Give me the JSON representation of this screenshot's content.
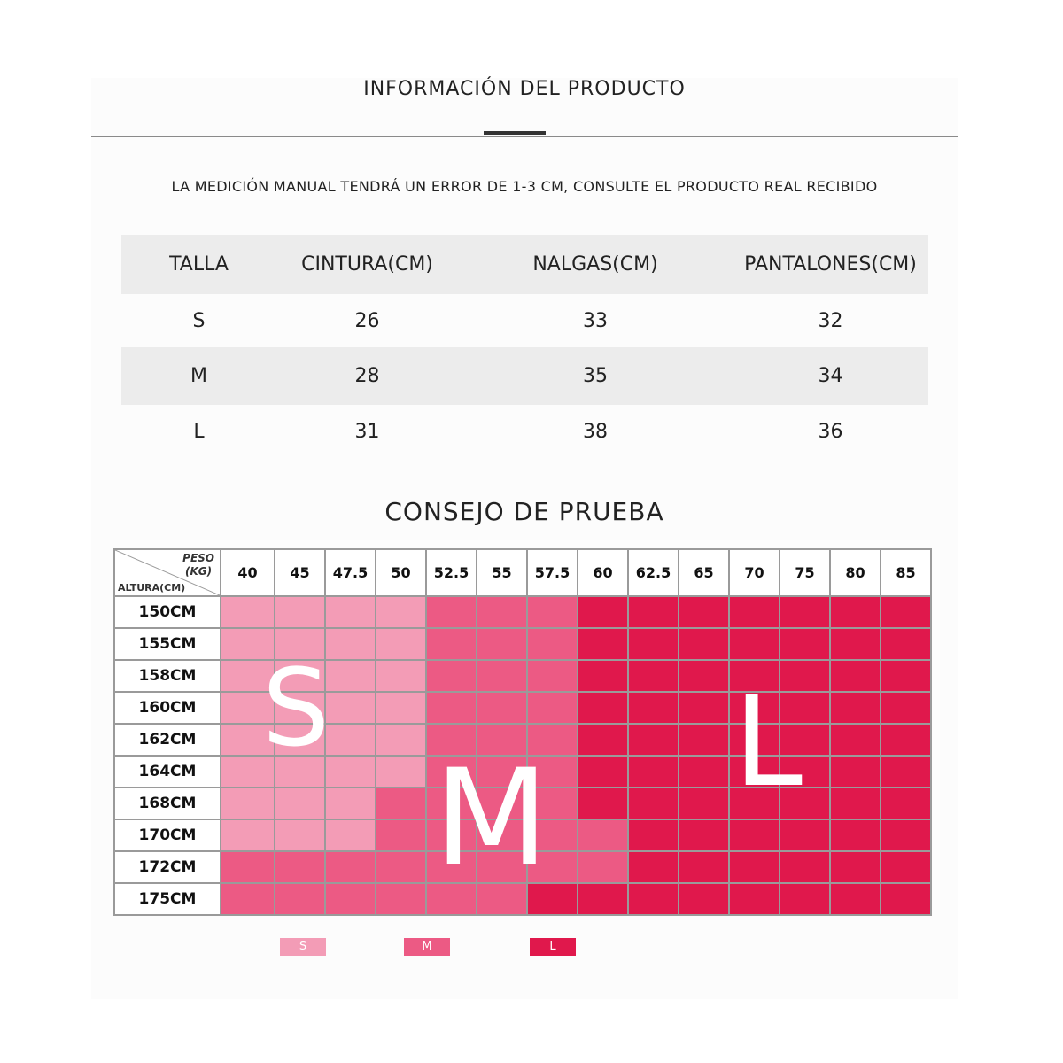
{
  "header": {
    "title": "INFORMACIÓN DEL PRODUCTO",
    "note": "LA MEDICIÓN MANUAL TENDRÁ UN ERROR DE 1-3 CM, CONSULTE EL PRODUCTO REAL RECIBIDO"
  },
  "size_table": {
    "columns": [
      "TALLA",
      "CINTURA(CM)",
      "NALGAS(CM)",
      "PANTALONES(CM)"
    ],
    "rows": [
      [
        "S",
        "26",
        "33",
        "32"
      ],
      [
        "M",
        "28",
        "35",
        "34"
      ],
      [
        "L",
        "31",
        "38",
        "36"
      ]
    ]
  },
  "fit_chart": {
    "title": "CONSEJO DE PRUEBA",
    "corner_weight_label": "PESO",
    "corner_weight_unit": "(KG)",
    "corner_height_label": "ALTURA(CM)",
    "weights": [
      "40",
      "45",
      "47.5",
      "50",
      "52.5",
      "55",
      "57.5",
      "60",
      "62.5",
      "65",
      "70",
      "75",
      "80",
      "85"
    ],
    "heights": [
      "150CM",
      "155CM",
      "158CM",
      "160CM",
      "162CM",
      "164CM",
      "168CM",
      "170CM",
      "172CM",
      "175CM"
    ],
    "grid": [
      [
        "S",
        "S",
        "S",
        "S",
        "M",
        "M",
        "M",
        "L",
        "L",
        "L",
        "L",
        "L",
        "L",
        "L"
      ],
      [
        "S",
        "S",
        "S",
        "S",
        "M",
        "M",
        "M",
        "L",
        "L",
        "L",
        "L",
        "L",
        "L",
        "L"
      ],
      [
        "S",
        "S",
        "S",
        "S",
        "M",
        "M",
        "M",
        "L",
        "L",
        "L",
        "L",
        "L",
        "L",
        "L"
      ],
      [
        "S",
        "S",
        "S",
        "S",
        "M",
        "M",
        "M",
        "L",
        "L",
        "L",
        "L",
        "L",
        "L",
        "L"
      ],
      [
        "S",
        "S",
        "S",
        "S",
        "M",
        "M",
        "M",
        "L",
        "L",
        "L",
        "L",
        "L",
        "L",
        "L"
      ],
      [
        "S",
        "S",
        "S",
        "S",
        "M",
        "M",
        "M",
        "L",
        "L",
        "L",
        "L",
        "L",
        "L",
        "L"
      ],
      [
        "S",
        "S",
        "S",
        "M",
        "M",
        "M",
        "M",
        "L",
        "L",
        "L",
        "L",
        "L",
        "L",
        "L"
      ],
      [
        "S",
        "S",
        "S",
        "M",
        "M",
        "M",
        "M",
        "M",
        "L",
        "L",
        "L",
        "L",
        "L",
        "L"
      ],
      [
        "M",
        "M",
        "M",
        "M",
        "M",
        "M",
        "M",
        "M",
        "L",
        "L",
        "L",
        "L",
        "L",
        "L"
      ],
      [
        "M",
        "M",
        "M",
        "M",
        "M",
        "M",
        "L",
        "L",
        "L",
        "L",
        "L",
        "L",
        "L",
        "L"
      ]
    ],
    "zone_letters": {
      "s": "S",
      "m": "M",
      "l": "L"
    },
    "colors": {
      "S": "#f39cb6",
      "M": "#ec5a84",
      "L": "#e0184c"
    }
  },
  "legend": [
    {
      "label": "S",
      "color": "#f39cb6"
    },
    {
      "label": "M",
      "color": "#ec5a84"
    },
    {
      "label": "L",
      "color": "#e0184c"
    }
  ]
}
